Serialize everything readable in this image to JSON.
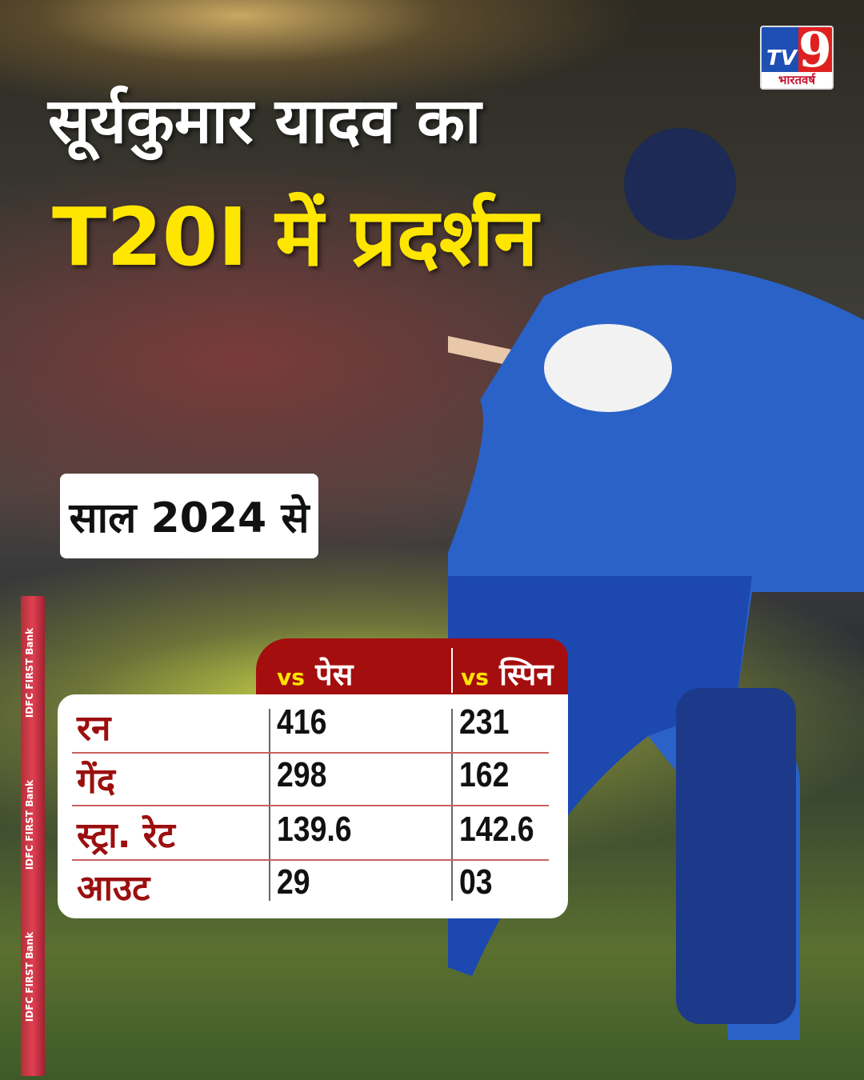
{
  "logo": {
    "brand": "TV9",
    "subtitle": "भारतवर्ष"
  },
  "title": {
    "line1": "सूर्यकुमार यादव का",
    "line2": "T20I में प्रदर्शन"
  },
  "period": "साल 2024 से",
  "stump_text": "IDFC FIRST Bank",
  "table": {
    "columns": [
      {
        "prefix": "vs",
        "label": "पेस"
      },
      {
        "prefix": "vs",
        "label": "स्पिन"
      }
    ],
    "rows": [
      {
        "label": "रन",
        "pace": "416",
        "spin": "231"
      },
      {
        "label": "गेंद",
        "pace": "298",
        "spin": "162"
      },
      {
        "label": "स्ट्रा. रेट",
        "pace": "139.6",
        "spin": "142.6"
      },
      {
        "label": "आउट",
        "pace": "29",
        "spin": "03"
      }
    ]
  },
  "colors": {
    "header_red": "#a50e0e",
    "title_yellow": "#ffe600",
    "jersey_blue": "#2a62c8"
  }
}
